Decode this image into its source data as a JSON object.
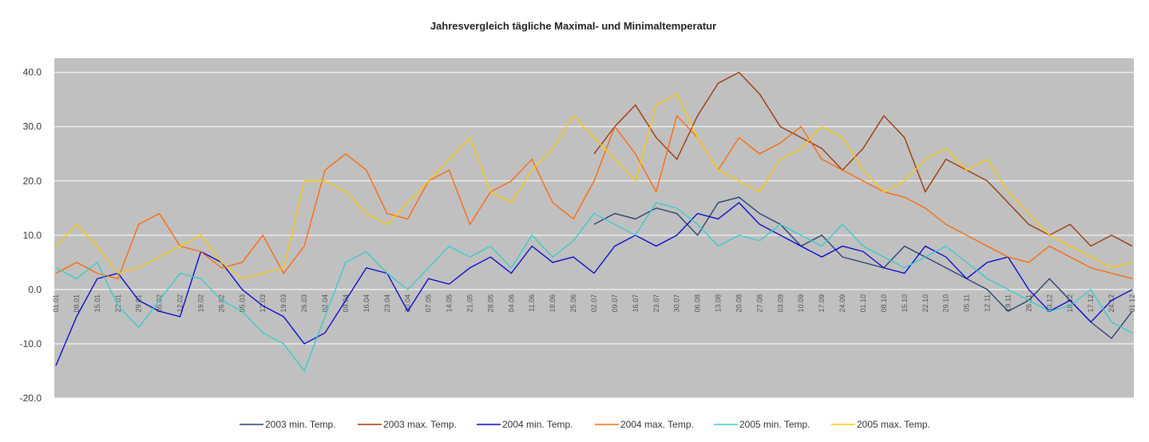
{
  "chart_data": {
    "type": "line",
    "title": "Jahresvergleich tägliche Maximal- und Minimaltemperatur",
    "categories": [
      "01.01",
      "08.01",
      "15.01",
      "22.01",
      "29.01",
      "05.02",
      "12.02",
      "19.02",
      "26.02",
      "05.03",
      "12.03",
      "19.03",
      "26.03",
      "02.04",
      "09.04",
      "16.04",
      "23.04",
      "30.04",
      "07.05",
      "14.05",
      "21.05",
      "28.05",
      "04.06",
      "11.06",
      "18.06",
      "25.06",
      "02.07",
      "09.07",
      "16.07",
      "23.07",
      "30.07",
      "06.08",
      "13.08",
      "20.08",
      "27.08",
      "03.09",
      "10.09",
      "17.09",
      "24.09",
      "01.10",
      "08.10",
      "15.10",
      "22.10",
      "29.10",
      "05.11",
      "12.11",
      "19.11",
      "26.11",
      "03.12",
      "10.12",
      "17.12",
      "24.12",
      "31.12"
    ],
    "series": [
      {
        "name": "2003 min. Temp.",
        "color": "#1f3a6e",
        "values": [
          null,
          null,
          null,
          null,
          null,
          null,
          null,
          null,
          null,
          null,
          null,
          null,
          null,
          null,
          null,
          null,
          null,
          null,
          null,
          null,
          null,
          null,
          null,
          null,
          null,
          null,
          12,
          14,
          13,
          15,
          14,
          10,
          16,
          17,
          14,
          12,
          8,
          10,
          6,
          5,
          4,
          8,
          6,
          4,
          2,
          0,
          -4,
          -2,
          2,
          -2,
          -6,
          -9,
          -4
        ]
      },
      {
        "name": "2003 max. Temp.",
        "color": "#993300",
        "values": [
          null,
          null,
          null,
          null,
          null,
          null,
          null,
          null,
          null,
          null,
          null,
          null,
          null,
          null,
          null,
          null,
          null,
          null,
          null,
          null,
          null,
          null,
          null,
          null,
          null,
          null,
          25,
          30,
          34,
          28,
          24,
          32,
          38,
          40,
          36,
          30,
          28,
          26,
          22,
          26,
          32,
          28,
          18,
          24,
          22,
          20,
          16,
          12,
          10,
          12,
          8,
          10,
          8
        ]
      },
      {
        "name": "2004 min. Temp.",
        "color": "#0000cc",
        "values": [
          -14,
          -5,
          2,
          3,
          -2,
          -4,
          -5,
          7,
          5,
          0,
          -3,
          -5,
          -10,
          -8,
          -2,
          4,
          3,
          -4,
          2,
          1,
          4,
          6,
          3,
          8,
          5,
          6,
          3,
          8,
          10,
          8,
          10,
          14,
          13,
          16,
          12,
          10,
          8,
          6,
          8,
          7,
          4,
          3,
          8,
          6,
          2,
          5,
          6,
          0,
          -4,
          -2,
          -6,
          -2,
          0
        ]
      },
      {
        "name": "2004 max. Temp.",
        "color": "#ff6600",
        "values": [
          3,
          5,
          3,
          2,
          12,
          14,
          8,
          7,
          4,
          5,
          10,
          3,
          8,
          22,
          25,
          22,
          14,
          13,
          20,
          22,
          12,
          18,
          20,
          24,
          16,
          13,
          20,
          30,
          25,
          18,
          32,
          28,
          22,
          28,
          25,
          27,
          30,
          24,
          22,
          20,
          18,
          17,
          15,
          12,
          10,
          8,
          6,
          5,
          8,
          6,
          4,
          3,
          2
        ]
      },
      {
        "name": "2005 min. Temp.",
        "color": "#33cccc",
        "values": [
          4,
          2,
          5,
          -3,
          -7,
          -2,
          3,
          2,
          -2,
          -4,
          -8,
          -10,
          -15,
          -5,
          5,
          7,
          3,
          0,
          4,
          8,
          6,
          8,
          4,
          10,
          6,
          9,
          14,
          12,
          10,
          16,
          15,
          12,
          8,
          10,
          9,
          12,
          10,
          8,
          12,
          8,
          6,
          4,
          6,
          8,
          5,
          2,
          0,
          -2,
          -4,
          -3,
          0,
          -6,
          -8
        ]
      },
      {
        "name": "2005 max. Temp.",
        "color": "#ffcc00",
        "values": [
          8,
          12,
          8,
          3,
          4,
          6,
          8,
          10,
          5,
          2,
          3,
          4,
          20,
          20,
          18,
          14,
          12,
          16,
          20,
          24,
          28,
          18,
          16,
          22,
          26,
          32,
          28,
          24,
          20,
          34,
          36,
          28,
          22,
          20,
          18,
          24,
          26,
          30,
          28,
          22,
          18,
          20,
          24,
          26,
          22,
          24,
          18,
          14,
          10,
          8,
          6,
          4,
          5
        ]
      }
    ],
    "ylim": [
      -20,
      42.6
    ],
    "yticks": [
      {
        "value": -20,
        "label": "-20.0"
      },
      {
        "value": -10,
        "label": "-10.0"
      },
      {
        "value": 0,
        "label": "0.0"
      },
      {
        "value": 10,
        "label": "10.0"
      },
      {
        "value": 20,
        "label": "20.0"
      },
      {
        "value": 30,
        "label": "30.0"
      },
      {
        "value": 40,
        "label": "40.0"
      }
    ],
    "grid": true,
    "legend": "bottom",
    "background": "#c0c0c0"
  }
}
